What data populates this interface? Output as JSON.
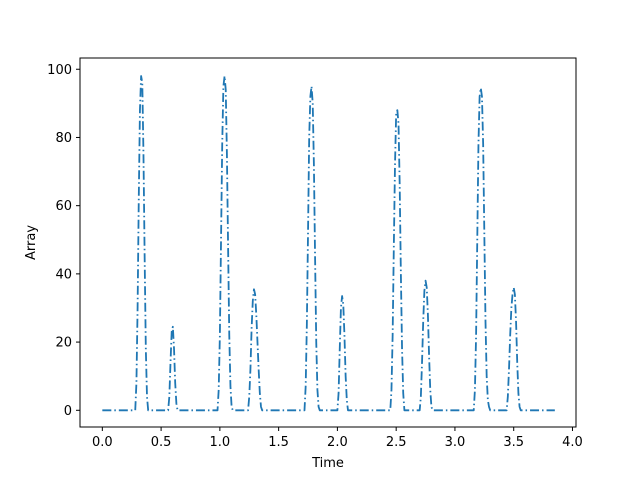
{
  "chart_data": {
    "type": "line",
    "title": "",
    "xlabel": "Time",
    "ylabel": "Array",
    "xlim": [
      -0.19,
      4.03
    ],
    "ylim": [
      -4.9,
      103.3
    ],
    "xticks": [
      0.0,
      0.5,
      1.0,
      1.5,
      2.0,
      2.5,
      3.0,
      3.5,
      4.0
    ],
    "xtick_labels": [
      "0.0",
      "0.5",
      "1.0",
      "1.5",
      "2.0",
      "2.5",
      "3.0",
      "3.5",
      "4.0"
    ],
    "yticks": [
      0,
      20,
      40,
      60,
      80,
      100
    ],
    "ytick_labels": [
      "0",
      "20",
      "40",
      "60",
      "80",
      "100"
    ],
    "grid": false,
    "line_style": "dashdot",
    "color": "#1f77b4",
    "series": [
      {
        "x": [
          0.0,
          0.28,
          0.29,
          0.3,
          0.31,
          0.32,
          0.33,
          0.34,
          0.35,
          0.36,
          0.37,
          0.38,
          0.39,
          0.56,
          0.57,
          0.58,
          0.59,
          0.6,
          0.61,
          0.62,
          0.63,
          0.64,
          0.98,
          0.99,
          1.0,
          1.01,
          1.02,
          1.03,
          1.04,
          1.05,
          1.06,
          1.07,
          1.08,
          1.09,
          1.1,
          1.11,
          1.24,
          1.25,
          1.26,
          1.27,
          1.28,
          1.29,
          1.3,
          1.31,
          1.32,
          1.33,
          1.34,
          1.35,
          1.36,
          1.37,
          1.72,
          1.73,
          1.74,
          1.75,
          1.76,
          1.77,
          1.78,
          1.79,
          1.8,
          1.81,
          1.82,
          1.83,
          1.84,
          1.85,
          2.0,
          2.01,
          2.02,
          2.03,
          2.04,
          2.05,
          2.06,
          2.07,
          2.08,
          2.09,
          2.45,
          2.46,
          2.47,
          2.48,
          2.49,
          2.5,
          2.51,
          2.52,
          2.53,
          2.54,
          2.55,
          2.56,
          2.57,
          2.7,
          2.71,
          2.72,
          2.73,
          2.74,
          2.75,
          2.76,
          2.77,
          2.78,
          2.79,
          2.8,
          2.81,
          3.16,
          3.17,
          3.18,
          3.19,
          3.2,
          3.21,
          3.22,
          3.23,
          3.24,
          3.25,
          3.26,
          3.27,
          3.28,
          3.29,
          3.3,
          3.44,
          3.45,
          3.46,
          3.47,
          3.48,
          3.49,
          3.5,
          3.51,
          3.52,
          3.53,
          3.54,
          3.55,
          3.56,
          3.85
        ],
        "values": [
          0,
          0,
          8,
          30,
          62,
          88,
          98,
          96,
          75,
          45,
          18,
          4,
          0,
          0,
          4,
          14,
          23,
          24.5,
          18,
          8,
          2,
          0,
          0,
          6,
          22,
          50,
          78,
          95,
          98,
          94,
          75,
          48,
          22,
          7,
          1,
          0,
          0,
          4,
          12,
          24,
          32,
          35.5,
          34,
          28,
          20,
          12,
          5,
          1,
          0,
          0,
          0,
          7,
          25,
          52,
          80,
          92,
          95,
          90,
          72,
          45,
          20,
          6,
          1,
          0,
          0,
          5,
          18,
          30,
          33.5,
          31,
          22,
          10,
          3,
          0,
          0,
          6,
          22,
          48,
          72,
          87,
          88,
          84,
          66,
          40,
          18,
          5,
          0,
          0,
          4,
          14,
          26,
          35,
          38,
          36,
          28,
          16,
          6,
          1,
          0,
          0,
          6,
          22,
          50,
          78,
          92,
          94.5,
          92,
          78,
          52,
          26,
          10,
          3,
          1,
          0,
          0,
          4,
          12,
          22,
          30,
          34,
          36,
          34,
          26,
          14,
          5,
          1,
          0,
          0
        ]
      }
    ]
  }
}
